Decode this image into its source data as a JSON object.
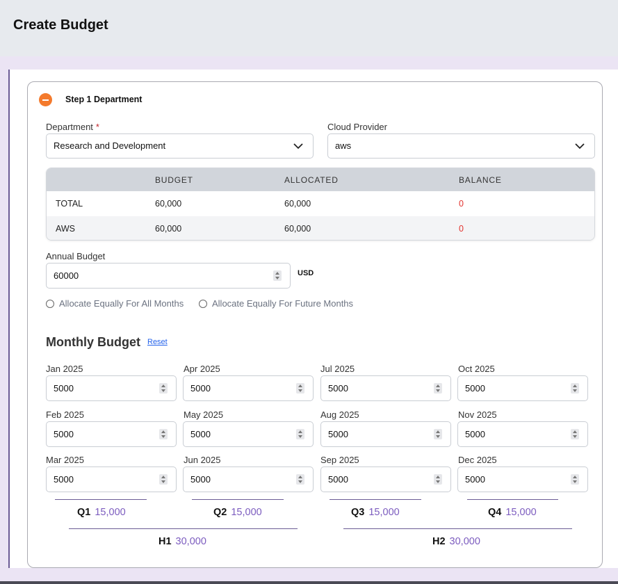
{
  "header": {
    "title": "Create Budget"
  },
  "step": {
    "title": "Step 1 Department"
  },
  "department": {
    "label": "Department",
    "required_mark": "*",
    "value": "Research and Development"
  },
  "cloud_provider": {
    "label": "Cloud Provider",
    "value": "aws"
  },
  "summary_table": {
    "headers": [
      "",
      "BUDGET",
      "ALLOCATED",
      "BALANCE"
    ],
    "rows": [
      {
        "name": "TOTAL",
        "budget": "60,000",
        "allocated": "60,000",
        "balance": "0"
      },
      {
        "name": "AWS",
        "budget": "60,000",
        "allocated": "60,000",
        "balance": "0"
      }
    ]
  },
  "annual_budget": {
    "label": "Annual Budget",
    "value": "60000",
    "currency": "USD"
  },
  "allocation_options": [
    {
      "label": "Allocate Equally For All Months",
      "selected": false
    },
    {
      "label": "Allocate Equally For Future Months",
      "selected": false
    }
  ],
  "monthly": {
    "title": "Monthly Budget",
    "reset_label": "Reset",
    "months": [
      {
        "label": "Jan 2025",
        "value": "5000"
      },
      {
        "label": "Feb 2025",
        "value": "5000"
      },
      {
        "label": "Mar 2025",
        "value": "5000"
      },
      {
        "label": "Apr 2025",
        "value": "5000"
      },
      {
        "label": "May 2025",
        "value": "5000"
      },
      {
        "label": "Jun 2025",
        "value": "5000"
      },
      {
        "label": "Jul 2025",
        "value": "5000"
      },
      {
        "label": "Aug 2025",
        "value": "5000"
      },
      {
        "label": "Sep 2025",
        "value": "5000"
      },
      {
        "label": "Oct 2025",
        "value": "5000"
      },
      {
        "label": "Nov 2025",
        "value": "5000"
      },
      {
        "label": "Dec 2025",
        "value": "5000"
      }
    ],
    "quarters": [
      {
        "label": "Q1",
        "value": "15,000"
      },
      {
        "label": "Q2",
        "value": "15,000"
      },
      {
        "label": "Q3",
        "value": "15,000"
      },
      {
        "label": "Q4",
        "value": "15,000"
      }
    ],
    "halves": [
      {
        "label": "H1",
        "value": "30,000"
      },
      {
        "label": "H2",
        "value": "30,000"
      }
    ]
  },
  "colors": {
    "accent": "#f47a2c",
    "balance_red": "#e3342f",
    "summary_purple": "#7c5cbf",
    "link_blue": "#2563eb"
  },
  "icons": [
    "minus-circle-icon",
    "chevron-down-icon",
    "spinner-icon"
  ]
}
